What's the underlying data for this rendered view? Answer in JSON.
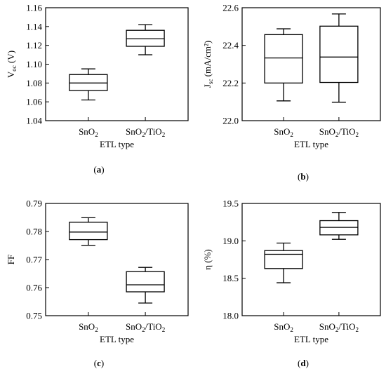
{
  "chart_data": [
    {
      "type": "box",
      "panel_label": "(a)",
      "panel_letter": "a",
      "xlabel": "ETL type",
      "ylabel": {
        "main": "V",
        "sub": "oc",
        "unit": " (V)"
      },
      "ylim": [
        1.04,
        1.16
      ],
      "yticks": [
        "1.04",
        "1.06",
        "1.08",
        "1.10",
        "1.12",
        "1.14",
        "1.16"
      ],
      "categories": [
        {
          "base": "SnO",
          "sub": "2",
          "rest": ""
        },
        {
          "base": "SnO",
          "sub": "2",
          "rest": "/TiO",
          "sub2": "2"
        }
      ],
      "boxes": [
        {
          "min": 1.062,
          "q1": 1.072,
          "median": 1.08,
          "q3": 1.089,
          "max": 1.095
        },
        {
          "min": 1.11,
          "q1": 1.119,
          "median": 1.127,
          "q3": 1.136,
          "max": 1.142
        }
      ]
    },
    {
      "type": "box",
      "panel_label": "(b)",
      "panel_letter": "b",
      "xlabel": "ETL type",
      "ylabel": {
        "main": "J",
        "sub": "sc",
        "unit": " (mA/cm²)"
      },
      "ylim": [
        22.0,
        22.6
      ],
      "yticks": [
        "22.0",
        "22.2",
        "22.4",
        "22.6"
      ],
      "categories": [
        {
          "base": "SnO",
          "sub": "2",
          "rest": ""
        },
        {
          "base": "SnO",
          "sub": "2",
          "rest": "/TiO",
          "sub2": "2"
        }
      ],
      "boxes": [
        {
          "min": 22.105,
          "q1": 22.2,
          "median": 22.333,
          "q3": 22.457,
          "max": 22.488
        },
        {
          "min": 22.098,
          "q1": 22.203,
          "median": 22.338,
          "q3": 22.502,
          "max": 22.567
        }
      ]
    },
    {
      "type": "box",
      "panel_label": "(c)",
      "panel_letter": "c",
      "xlabel": "ETL type",
      "ylabel": {
        "main": "FF",
        "sub": "",
        "unit": ""
      },
      "ylim": [
        0.75,
        0.79
      ],
      "yticks": [
        "0.75",
        "0.76",
        "0.77",
        "0.78",
        "0.79"
      ],
      "categories": [
        {
          "base": "SnO",
          "sub": "2",
          "rest": ""
        },
        {
          "base": "SnO",
          "sub": "2",
          "rest": "/TiO",
          "sub2": "2"
        }
      ],
      "boxes": [
        {
          "min": 0.7751,
          "q1": 0.7771,
          "median": 0.7798,
          "q3": 0.7833,
          "max": 0.7849
        },
        {
          "min": 0.7545,
          "q1": 0.7585,
          "median": 0.761,
          "q3": 0.7657,
          "max": 0.7672
        }
      ]
    },
    {
      "type": "box",
      "panel_label": "(d)",
      "panel_letter": "d",
      "xlabel": "ETL type",
      "ylabel": {
        "main": "η (%)",
        "sub": "",
        "unit": ""
      },
      "ylim": [
        18.0,
        19.5
      ],
      "yticks": [
        "18.0",
        "18.5",
        "19.0",
        "19.5"
      ],
      "categories": [
        {
          "base": "SnO",
          "sub": "2",
          "rest": ""
        },
        {
          "base": "SnO",
          "sub": "2",
          "rest": "/TiO",
          "sub2": "2"
        }
      ],
      "boxes": [
        {
          "min": 18.44,
          "q1": 18.63,
          "median": 18.82,
          "q3": 18.87,
          "max": 18.97
        },
        {
          "min": 19.02,
          "q1": 19.08,
          "median": 19.18,
          "q3": 19.27,
          "max": 19.38
        }
      ]
    }
  ]
}
